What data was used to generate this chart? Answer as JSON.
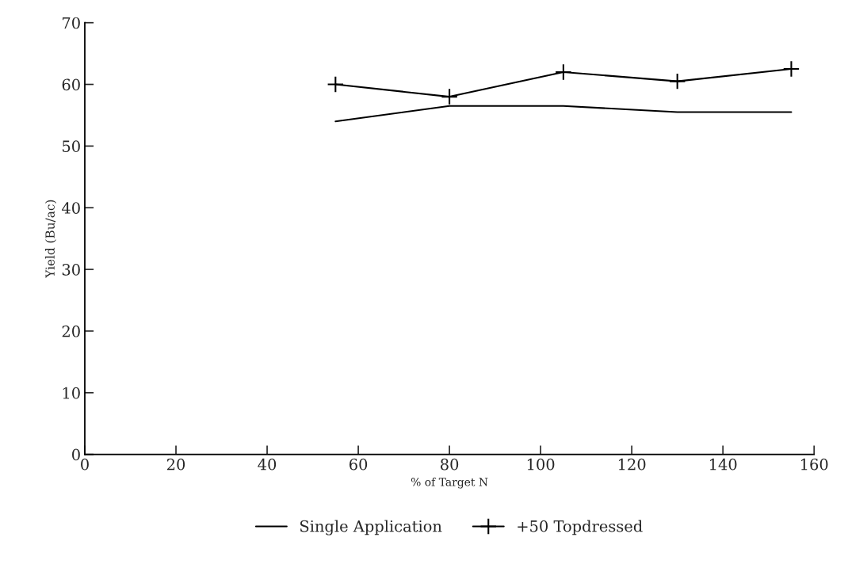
{
  "chart_data": {
    "type": "line",
    "xlabel": "% of Target N",
    "ylabel": "Yield (Bu/ac)",
    "x": [
      55,
      80,
      105,
      130,
      155
    ],
    "series": [
      {
        "name": "Single Application",
        "color": "#000000",
        "values": [
          54,
          56.5,
          56.5,
          55.5,
          55.5
        ],
        "marker": "none"
      },
      {
        "name": "+50 Topdressed",
        "color": "#000000",
        "values": [
          60,
          58,
          62,
          60.5,
          62.5
        ],
        "marker": "cross"
      }
    ],
    "xlim": [
      0,
      160
    ],
    "xticks": [
      0,
      20,
      40,
      60,
      80,
      100,
      120,
      140,
      160
    ],
    "ylim": [
      0,
      70
    ],
    "yticks": [
      0,
      10,
      20,
      30,
      40,
      50,
      60,
      70
    ],
    "grid": false,
    "legend": "bottom",
    "line_style": "solid"
  }
}
